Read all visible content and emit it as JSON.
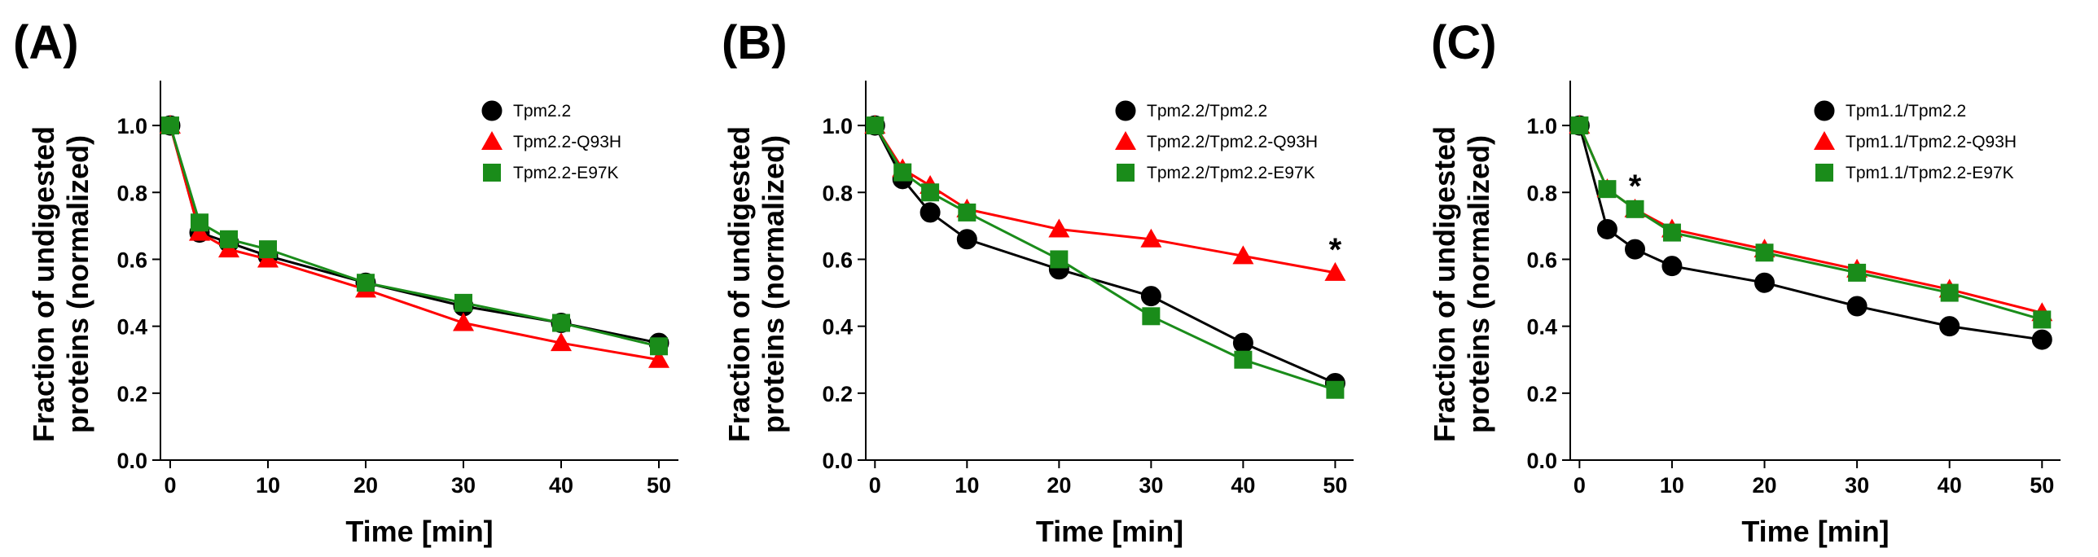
{
  "chart_data": [
    {
      "type": "line",
      "panel": "(A)",
      "title": "",
      "xlabel": "Time [min]",
      "ylabel": "Fraction of undigested proteins (normalized)",
      "ylabel_lines": [
        "Fraction of undigested",
        "proteins (normalized)"
      ],
      "xlim": [
        -1,
        52
      ],
      "ylim": [
        0,
        1.1
      ],
      "x_ticks": [
        0,
        10,
        20,
        30,
        40,
        50
      ],
      "y_ticks": [
        0.0,
        0.2,
        0.4,
        0.6,
        0.8,
        1.0
      ],
      "y_tick_labels": [
        "0.0",
        "0.2",
        "0.4",
        "0.6",
        "0.8",
        "1.0"
      ],
      "grid": false,
      "legend_position": "top-right",
      "annotations": [],
      "series": [
        {
          "name": "Tpm2.2",
          "color": "#000000",
          "marker": "circle",
          "x": [
            0,
            3,
            6,
            10,
            20,
            30,
            40,
            50
          ],
          "y": [
            1.0,
            0.68,
            0.65,
            0.61,
            0.53,
            0.46,
            0.41,
            0.35
          ]
        },
        {
          "name": "Tpm2.2-Q93H",
          "color": "#ff0000",
          "marker": "triangle",
          "x": [
            0,
            3,
            6,
            10,
            20,
            30,
            40,
            50
          ],
          "y": [
            1.0,
            0.68,
            0.63,
            0.6,
            0.51,
            0.41,
            0.35,
            0.3
          ]
        },
        {
          "name": "Tpm2.2-E97K",
          "color": "#1a8c1a",
          "marker": "square",
          "x": [
            0,
            3,
            6,
            10,
            20,
            30,
            40,
            50
          ],
          "y": [
            1.0,
            0.71,
            0.66,
            0.63,
            0.53,
            0.47,
            0.41,
            0.34
          ]
        }
      ]
    },
    {
      "type": "line",
      "panel": "(B)",
      "title": "",
      "xlabel": "Time [min]",
      "ylabel": "Fraction of undigested proteins (normalized)",
      "ylabel_lines": [
        "Fraction of undigested",
        "proteins (normalized)"
      ],
      "xlim": [
        -1,
        52
      ],
      "ylim": [
        0,
        1.1
      ],
      "x_ticks": [
        0,
        10,
        20,
        30,
        40,
        50
      ],
      "y_ticks": [
        0.0,
        0.2,
        0.4,
        0.6,
        0.8,
        1.0
      ],
      "y_tick_labels": [
        "0.0",
        "0.2",
        "0.4",
        "0.6",
        "0.8",
        "1.0"
      ],
      "grid": false,
      "legend_position": "top-right",
      "annotations": [
        {
          "text": "*",
          "x": 50,
          "y": 0.64
        }
      ],
      "series": [
        {
          "name": "Tpm2.2/Tpm2.2",
          "color": "#000000",
          "marker": "circle",
          "x": [
            0,
            3,
            6,
            10,
            20,
            30,
            40,
            50
          ],
          "y": [
            1.0,
            0.84,
            0.74,
            0.66,
            0.57,
            0.49,
            0.35,
            0.23
          ]
        },
        {
          "name": "Tpm2.2/Tpm2.2-Q93H",
          "color": "#ff0000",
          "marker": "triangle",
          "x": [
            0,
            3,
            6,
            10,
            20,
            30,
            40,
            50
          ],
          "y": [
            1.0,
            0.87,
            0.82,
            0.75,
            0.69,
            0.66,
            0.61,
            0.56
          ]
        },
        {
          "name": "Tpm2.2/Tpm2.2-E97K",
          "color": "#1a8c1a",
          "marker": "square",
          "x": [
            0,
            3,
            6,
            10,
            20,
            30,
            40,
            50
          ],
          "y": [
            1.0,
            0.86,
            0.8,
            0.74,
            0.6,
            0.43,
            0.3,
            0.21
          ]
        }
      ]
    },
    {
      "type": "line",
      "panel": "(C)",
      "title": "",
      "xlabel": "Time [min]",
      "ylabel": "Fraction of undigested proteins (normalized)",
      "ylabel_lines": [
        "Fraction of undigested",
        "proteins (normalized)"
      ],
      "xlim": [
        -1,
        52
      ],
      "ylim": [
        0,
        1.1
      ],
      "x_ticks": [
        0,
        10,
        20,
        30,
        40,
        50
      ],
      "y_ticks": [
        0.0,
        0.2,
        0.4,
        0.6,
        0.8,
        1.0
      ],
      "y_tick_labels": [
        "0.0",
        "0.2",
        "0.4",
        "0.6",
        "0.8",
        "1.0"
      ],
      "grid": false,
      "legend_position": "top-right",
      "annotations": [
        {
          "text": "*",
          "x": 6,
          "y": 0.83
        }
      ],
      "series": [
        {
          "name": "Tpm1.1/Tpm2.2",
          "color": "#000000",
          "marker": "circle",
          "x": [
            0,
            3,
            6,
            10,
            20,
            30,
            40,
            50
          ],
          "y": [
            1.0,
            0.69,
            0.63,
            0.58,
            0.53,
            0.46,
            0.4,
            0.36
          ]
        },
        {
          "name": "Tpm1.1/Tpm2.2-Q93H",
          "color": "#ff0000",
          "marker": "triangle",
          "x": [
            0,
            3,
            6,
            10,
            20,
            30,
            40,
            50
          ],
          "y": [
            1.0,
            0.81,
            0.75,
            0.69,
            0.63,
            0.57,
            0.51,
            0.44
          ]
        },
        {
          "name": "Tpm1.1/Tpm2.2-E97K",
          "color": "#1a8c1a",
          "marker": "square",
          "x": [
            0,
            3,
            6,
            10,
            20,
            30,
            40,
            50
          ],
          "y": [
            1.0,
            0.81,
            0.75,
            0.68,
            0.62,
            0.56,
            0.5,
            0.42
          ]
        }
      ]
    }
  ]
}
